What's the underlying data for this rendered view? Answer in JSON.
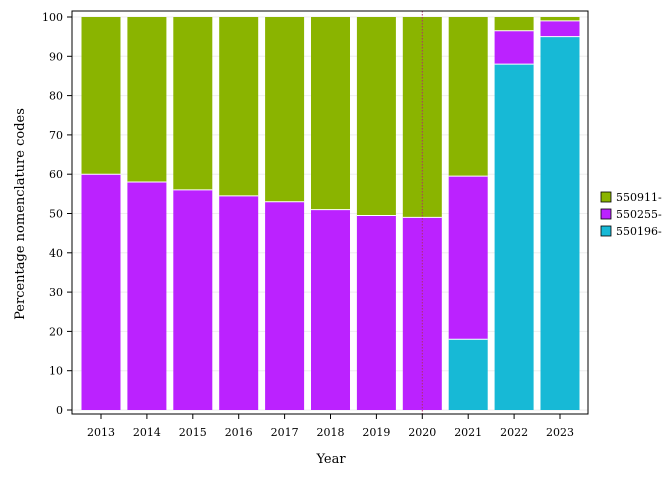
{
  "chart_data": {
    "type": "bar",
    "stacked": true,
    "xlabel": "Year",
    "ylabel": "Percentage nomenclature codes",
    "ylim": [
      0,
      100
    ],
    "yticks": [
      0,
      10,
      20,
      30,
      40,
      50,
      60,
      70,
      80,
      90,
      100
    ],
    "grid": true,
    "legend_position": "right",
    "reference_line_x": "2020",
    "categories": [
      "2013",
      "2014",
      "2015",
      "2016",
      "2017",
      "2018",
      "2019",
      "2020",
      "2021",
      "2022",
      "2023"
    ],
    "series": [
      {
        "name": "550196-",
        "color": "#17b9d6",
        "values": [
          0,
          0,
          0,
          0,
          0,
          0,
          0,
          0,
          18,
          88,
          95
        ]
      },
      {
        "name": "550255-",
        "color": "#bb22ff",
        "values": [
          60,
          58,
          56,
          54.5,
          53,
          51,
          49.5,
          49,
          41.5,
          8.5,
          4
        ]
      },
      {
        "name": "550911-",
        "color": "#8ab400",
        "values": [
          40,
          42,
          44,
          45.5,
          47,
          49,
          50.5,
          51,
          40.5,
          3.5,
          1
        ]
      }
    ],
    "legend_order": [
      "550911-",
      "550255-",
      "550196-"
    ]
  }
}
